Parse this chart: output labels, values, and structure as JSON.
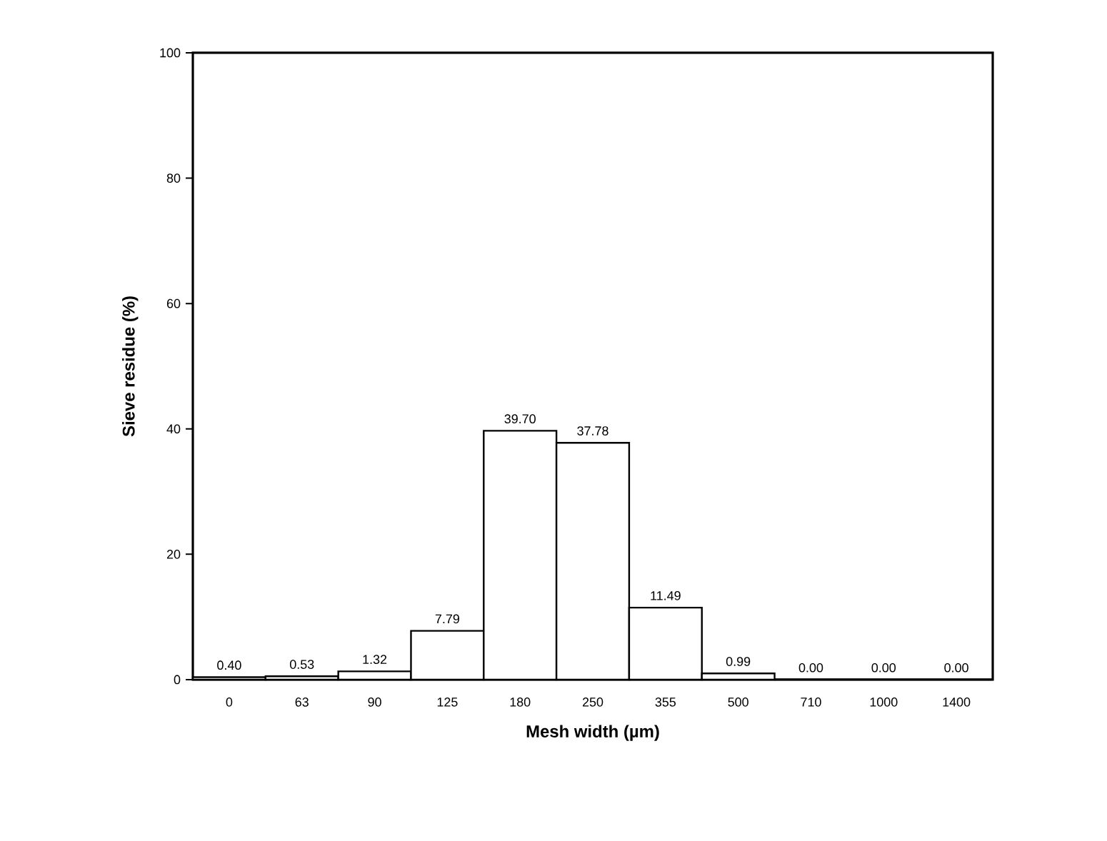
{
  "chart_data": {
    "type": "bar",
    "xlabel": "Mesh width (µm)",
    "ylabel": "Sieve residue (%)",
    "categories": [
      "0",
      "63",
      "90",
      "125",
      "180",
      "250",
      "355",
      "500",
      "710",
      "1000",
      "1400"
    ],
    "values": [
      0.4,
      0.53,
      1.32,
      7.79,
      39.7,
      37.78,
      11.49,
      0.99,
      0.0,
      0.0,
      0.0
    ],
    "value_labels": [
      "0.40",
      "0.53",
      "1.32",
      "7.79",
      "39.70",
      "37.78",
      "11.49",
      "0.99",
      "0.00",
      "0.00",
      "0.00"
    ],
    "colors": [
      "#ffffff",
      "#ffffff",
      "#ffffff",
      "#ffffff",
      "#ffffff",
      "#ffffff",
      "#ffffff",
      "#ffffff",
      "#000000",
      "#000000",
      "#000000"
    ],
    "ylim": [
      0,
      100
    ],
    "yticks": [
      0,
      20,
      40,
      60,
      80,
      100
    ],
    "grid": false
  }
}
